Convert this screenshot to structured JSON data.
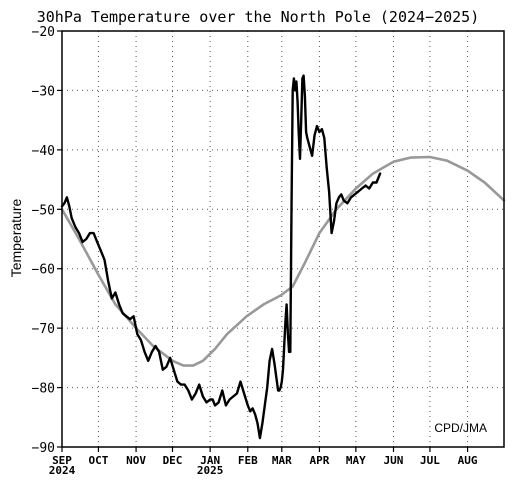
{
  "chart_data": {
    "type": "line",
    "title": "30hPa Temperature over the North Pole (2024−2025)",
    "xlabel": "",
    "ylabel": "Temperature",
    "credit": "CPD/JMA",
    "ylim": [
      -90,
      -20
    ],
    "yticks": [
      -20,
      -30,
      -40,
      -50,
      -60,
      -70,
      -80,
      -90
    ],
    "ytick_labels": [
      "−20",
      "−30",
      "−40",
      "−50",
      "−60",
      "−70",
      "−80",
      "−90"
    ],
    "xlim": [
      "2024-09-01",
      "2025-08-31"
    ],
    "xticks": [
      {
        "date": "2024-09-01",
        "label": "SEP",
        "sublabel": "2024"
      },
      {
        "date": "2024-10-01",
        "label": "OCT",
        "sublabel": ""
      },
      {
        "date": "2024-11-01",
        "label": "NOV",
        "sublabel": ""
      },
      {
        "date": "2024-12-01",
        "label": "DEC",
        "sublabel": ""
      },
      {
        "date": "2025-01-01",
        "label": "JAN",
        "sublabel": "2025"
      },
      {
        "date": "2025-02-01",
        "label": "FEB",
        "sublabel": ""
      },
      {
        "date": "2025-03-01",
        "label": "MAR",
        "sublabel": ""
      },
      {
        "date": "2025-04-01",
        "label": "APR",
        "sublabel": ""
      },
      {
        "date": "2025-05-01",
        "label": "MAY",
        "sublabel": ""
      },
      {
        "date": "2025-06-01",
        "label": "JUN",
        "sublabel": ""
      },
      {
        "date": "2025-07-01",
        "label": "JUL",
        "sublabel": ""
      },
      {
        "date": "2025-08-01",
        "label": "AUG",
        "sublabel": ""
      }
    ],
    "grid": true,
    "series": [
      {
        "role": "climatology",
        "color": "#999999",
        "x": [
          "2024-09-01",
          "2024-09-15",
          "2024-10-01",
          "2024-10-15",
          "2024-11-01",
          "2024-11-15",
          "2024-12-01",
          "2024-12-10",
          "2024-12-18",
          "2024-12-26",
          "2025-01-05",
          "2025-01-15",
          "2025-01-31",
          "2025-02-14",
          "2025-02-28",
          "2025-03-10",
          "2025-03-20",
          "2025-04-01",
          "2025-04-15",
          "2025-05-01",
          "2025-05-15",
          "2025-06-01",
          "2025-06-15",
          "2025-07-01",
          "2025-07-15",
          "2025-08-01",
          "2025-08-15",
          "2025-08-31"
        ],
        "y": [
          -50,
          -55,
          -61,
          -66,
          -70,
          -73,
          -75.5,
          -76.3,
          -76.3,
          -75.5,
          -73.5,
          -71,
          -68,
          -66,
          -64.5,
          -63,
          -59,
          -54,
          -50,
          -46.5,
          -44,
          -42,
          -41.3,
          -41.2,
          -41.8,
          -43.5,
          -45.5,
          -48.5
        ]
      },
      {
        "role": "observed",
        "color": "#000000",
        "x": [
          "2024-09-01",
          "2024-09-03",
          "2024-09-05",
          "2024-09-07",
          "2024-09-09",
          "2024-09-12",
          "2024-09-15",
          "2024-09-18",
          "2024-09-21",
          "2024-09-24",
          "2024-09-27",
          "2024-09-30",
          "2024-10-03",
          "2024-10-06",
          "2024-10-09",
          "2024-10-12",
          "2024-10-15",
          "2024-10-18",
          "2024-10-21",
          "2024-10-24",
          "2024-10-27",
          "2024-10-30",
          "2024-11-02",
          "2024-11-05",
          "2024-11-08",
          "2024-11-11",
          "2024-11-14",
          "2024-11-17",
          "2024-11-20",
          "2024-11-23",
          "2024-11-26",
          "2024-11-29",
          "2024-12-02",
          "2024-12-05",
          "2024-12-08",
          "2024-12-11",
          "2024-12-14",
          "2024-12-17",
          "2024-12-20",
          "2024-12-23",
          "2024-12-26",
          "2024-12-29",
          "2025-01-01",
          "2025-01-03",
          "2025-01-05",
          "2025-01-08",
          "2025-01-11",
          "2025-01-14",
          "2025-01-17",
          "2025-01-20",
          "2025-01-23",
          "2025-01-26",
          "2025-01-29",
          "2025-02-01",
          "2025-02-03",
          "2025-02-05",
          "2025-02-07",
          "2025-02-09",
          "2025-02-11",
          "2025-02-13",
          "2025-02-15",
          "2025-02-17",
          "2025-02-19",
          "2025-02-21",
          "2025-02-23",
          "2025-02-25",
          "2025-02-26",
          "2025-02-27",
          "2025-02-28",
          "2025-03-01",
          "2025-03-02",
          "2025-03-03",
          "2025-03-04",
          "2025-03-05",
          "2025-03-06",
          "2025-03-07",
          "2025-03-08",
          "2025-03-09",
          "2025-03-10",
          "2025-03-11",
          "2025-03-12",
          "2025-03-13",
          "2025-03-14",
          "2025-03-15",
          "2025-03-16",
          "2025-03-17",
          "2025-03-18",
          "2025-03-19",
          "2025-03-20",
          "2025-03-21",
          "2025-03-22",
          "2025-03-24",
          "2025-03-26",
          "2025-03-28",
          "2025-03-30",
          "2025-04-01",
          "2025-04-03",
          "2025-04-05",
          "2025-04-07",
          "2025-04-09",
          "2025-04-11",
          "2025-04-13",
          "2025-04-15",
          "2025-04-17",
          "2025-04-19",
          "2025-04-21",
          "2025-04-24",
          "2025-04-27",
          "2025-04-30",
          "2025-05-03",
          "2025-05-06",
          "2025-05-09",
          "2025-05-12",
          "2025-05-15",
          "2025-05-18",
          "2025-05-21"
        ],
        "y": [
          -49.5,
          -49,
          -48,
          -49.5,
          -51.5,
          -53,
          -54,
          -55.5,
          -55,
          -54,
          -54,
          -55.5,
          -57,
          -58.5,
          -62,
          -65,
          -64,
          -66,
          -67.5,
          -68,
          -68.5,
          -68,
          -71,
          -72,
          -74,
          -75.5,
          -74,
          -73,
          -74,
          -77,
          -76.5,
          -75,
          -77,
          -79,
          -79.5,
          -79.5,
          -80.5,
          -82,
          -81,
          -79.5,
          -81.5,
          -82.5,
          -82,
          -82,
          -83,
          -82.5,
          -80.5,
          -83,
          -82,
          -81.5,
          -81,
          -79,
          -81,
          -83,
          -84,
          -83.5,
          -84.5,
          -86,
          -88.5,
          -86,
          -83,
          -80,
          -75.5,
          -73.5,
          -76,
          -79,
          -80.5,
          -80.5,
          -80,
          -79,
          -77,
          -73,
          -69,
          -66,
          -71,
          -74,
          -74,
          -50,
          -30,
          -28,
          -30,
          -28.5,
          -32,
          -37.5,
          -41.5,
          -35,
          -28,
          -27.5,
          -31,
          -37,
          -38,
          -39.5,
          -41,
          -37.5,
          -36,
          -37,
          -36.5,
          -38,
          -43,
          -47,
          -54,
          -52,
          -49,
          -48,
          -47.5,
          -48.5,
          -49,
          -48,
          -47.5,
          -47,
          -46.5,
          -46,
          -46.5,
          -45.5,
          -45.5,
          -44
        ]
      }
    ]
  }
}
